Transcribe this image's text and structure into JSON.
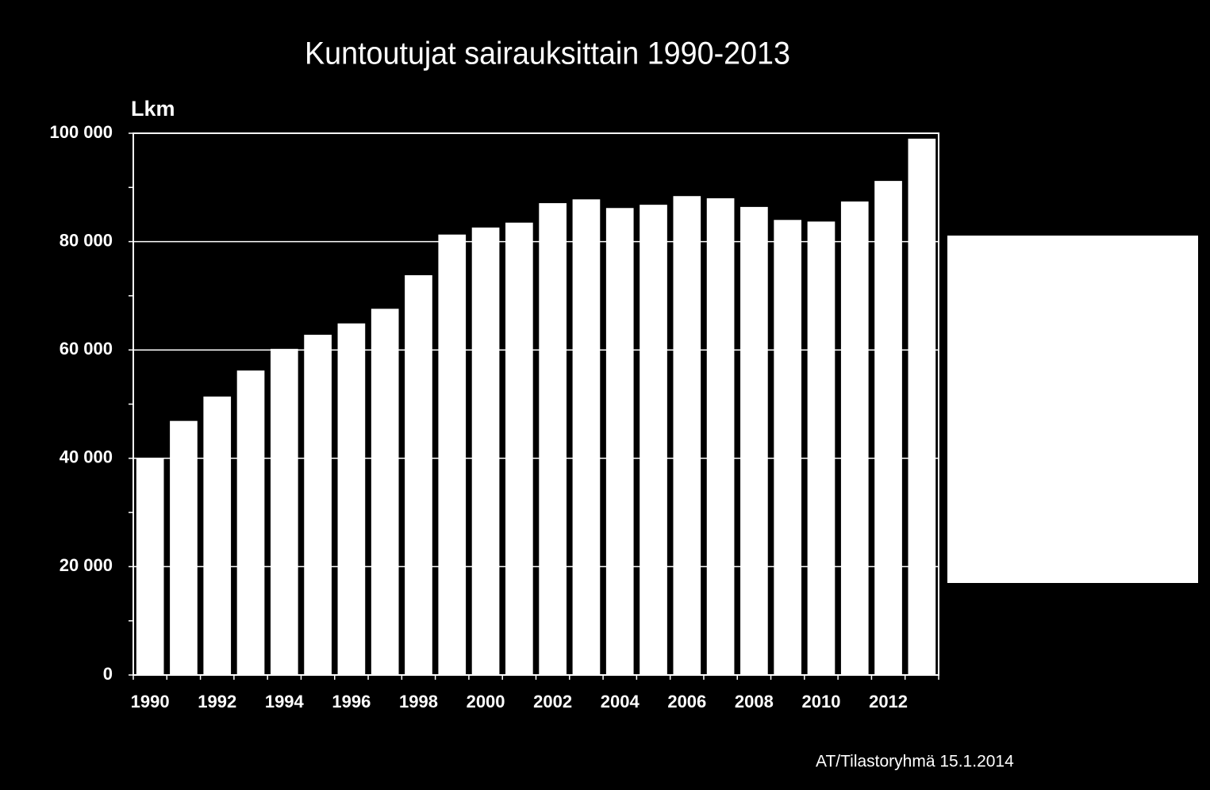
{
  "chart_data": {
    "type": "bar",
    "title": "Kuntoutujat sairauksittain 1990-2013",
    "y_label": "Lkm",
    "footer": "AT/Tilastoryhmä  15.1.2014",
    "categories": [
      "1990",
      null,
      "1992",
      null,
      "1994",
      null,
      "1996",
      null,
      "1998",
      null,
      "2000",
      null,
      "2002",
      null,
      "2004",
      null,
      "2006",
      null,
      "2008",
      null,
      "2010",
      null,
      "2012",
      null
    ],
    "values": [
      40000,
      46900,
      51400,
      56200,
      60200,
      62800,
      64900,
      67600,
      73800,
      81300,
      82600,
      83500,
      87100,
      87800,
      86200,
      86800,
      88400,
      88000,
      86400,
      84000,
      83700,
      87400,
      91200,
      99000
    ],
    "color": "#ffffff",
    "ylim": [
      0,
      100000
    ],
    "yticks": [
      0,
      {
        "value": 20000,
        "label": "20 000"
      },
      {
        "value": 40000,
        "label": "40 000"
      },
      {
        "value": 60000,
        "label": "60 000"
      },
      {
        "value": 80000,
        "label": "80 000"
      },
      {
        "value": 100000,
        "label": "100 000"
      }
    ],
    "grid": true
  }
}
